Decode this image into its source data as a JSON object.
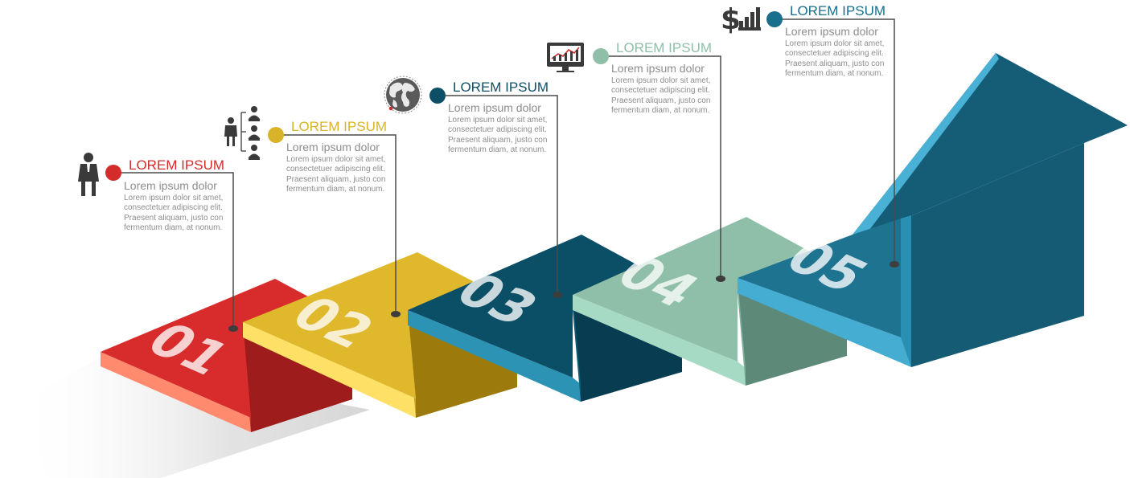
{
  "steps": [
    {
      "number": "01",
      "title": "LOREM IPSUM",
      "subtitle": "Lorem ipsum dolor",
      "lines": [
        "Lorem ipsum dolor sit amet,",
        " consectetuer adipiscing elit.",
        " Praesent aliquam, justo con",
        "fermentum diam, at nonum."
      ],
      "color": "#d42b2b",
      "icon": "businessman-icon"
    },
    {
      "number": "02",
      "title": "LOREM IPSUM",
      "subtitle": "Lorem ipsum dolor",
      "lines": [
        "Lorem ipsum dolor sit amet,",
        " consectetuer adipiscing elit.",
        "Praesent aliquam, justo con",
        "fermentum diam, at nonum."
      ],
      "color": "#d9b42a",
      "icon": "team-hierarchy-icon"
    },
    {
      "number": "03",
      "title": "LOREM IPSUM",
      "subtitle": "Lorem ipsum dolor",
      "lines": [
        "Lorem ipsum dolor sit amet,",
        " consectetuer adipiscing elit.",
        "Praesent aliquam, justo con",
        "fermentum diam, at nonum."
      ],
      "color": "#0c4f66",
      "icon": "globe-icon"
    },
    {
      "number": "04",
      "title": "LOREM IPSUM",
      "subtitle": "Lorem ipsum dolor",
      "lines": [
        "Lorem ipsum dolor sit amet,",
        " consectetuer adipiscing elit.",
        "Praesent aliquam, justo con",
        "fermentum diam, at nonum."
      ],
      "color": "#8fbfa9",
      "icon": "monitor-chart-icon"
    },
    {
      "number": "05",
      "title": "LOREM IPSUM",
      "subtitle": "Lorem ipsum dolor",
      "lines": [
        "Lorem ipsum dolor sit amet,",
        " consectetuer adipiscing elit.",
        "Praesent aliquam, justo con",
        "fermentum diam, at nonum."
      ],
      "color": "#1a6f8c",
      "icon": "dollar-chart-icon"
    }
  ]
}
